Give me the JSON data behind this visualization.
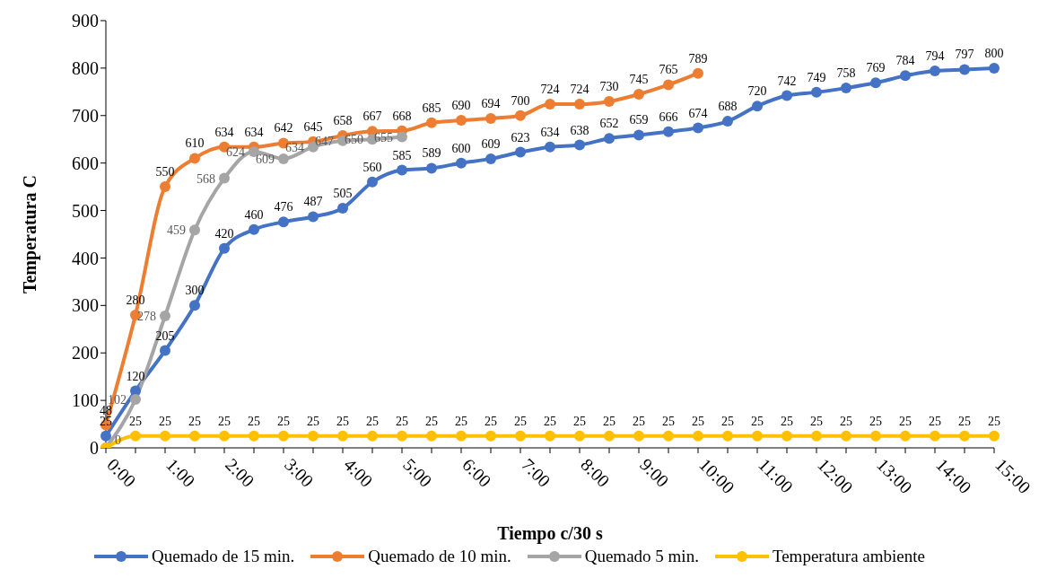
{
  "chart_data": {
    "type": "line",
    "xlabel": "Tiempo c/30 s",
    "ylabel": "Temperatura C",
    "categories": [
      "0:00",
      null,
      "1:00",
      null,
      "2:00",
      null,
      "3:00",
      null,
      "4:00",
      null,
      "5:00",
      null,
      "6:00",
      null,
      "7:00",
      null,
      "8:00",
      null,
      "9:00",
      null,
      "10:00",
      null,
      "11:00",
      null,
      "12:00",
      null,
      "13:00",
      null,
      "14:00",
      null,
      "15:00"
    ],
    "series": [
      {
        "name": "Quemado de 15 min.",
        "color": "#4472c4",
        "values": [
          25,
          120,
          205,
          300,
          420,
          460,
          476,
          487,
          505,
          560,
          585,
          589,
          600,
          609,
          623,
          634,
          638,
          652,
          659,
          666,
          674,
          688,
          720,
          742,
          749,
          758,
          769,
          784,
          794,
          797,
          800
        ],
        "value_labels": [
          "25",
          "120",
          "205",
          "300",
          "420",
          "460",
          "476",
          "487",
          "505",
          "560",
          "585",
          "589",
          "600",
          "609",
          "623",
          "634",
          "638",
          "652",
          "659",
          "666",
          "674",
          "688",
          "720",
          "742",
          "749",
          "758",
          "769",
          "784",
          "794",
          "797",
          "800"
        ]
      },
      {
        "name": "Quemado de 10 min.",
        "color": "#ed7d31",
        "values": [
          48,
          280,
          550,
          610,
          634,
          634,
          642,
          645,
          658,
          667,
          668,
          685,
          690,
          694,
          700,
          724,
          724,
          730,
          745,
          765,
          789,
          null,
          null,
          null,
          null,
          null,
          null,
          null,
          null,
          null,
          null
        ],
        "value_labels": [
          "48",
          "280",
          "550",
          "610",
          "634",
          "634",
          "642",
          "645",
          "658",
          "667",
          "668",
          "685",
          "690",
          "694",
          "700",
          "724",
          "724",
          "730",
          "745",
          "765",
          "789",
          null,
          null,
          null,
          null,
          null,
          null,
          null,
          null,
          null,
          null
        ]
      },
      {
        "name": "Quemado 5 min.",
        "color": "#a5a5a5",
        "values": [
          0,
          102,
          278,
          459,
          568,
          624,
          609,
          634,
          647,
          650,
          655,
          null,
          null,
          null,
          null,
          null,
          null,
          null,
          null,
          null,
          null,
          null,
          null,
          null,
          null,
          null,
          null,
          null,
          null,
          null,
          null
        ],
        "value_labels": [
          "0",
          "102",
          "278",
          "459",
          "568",
          "624",
          "609",
          "634",
          "647",
          "650",
          "655",
          null,
          null,
          null,
          null,
          null,
          null,
          null,
          null,
          null,
          null,
          null,
          null,
          null,
          null,
          null,
          null,
          null,
          null,
          null,
          null
        ]
      },
      {
        "name": "Temperatura ambiente",
        "color": "#ffc000",
        "values": [
          0,
          25,
          25,
          25,
          25,
          25,
          25,
          25,
          25,
          25,
          25,
          25,
          25,
          25,
          25,
          25,
          25,
          25,
          25,
          25,
          25,
          25,
          25,
          25,
          25,
          25,
          25,
          25,
          25,
          25,
          25
        ],
        "value_labels": [
          null,
          "25",
          "25",
          "25",
          "25",
          "25",
          "25",
          "25",
          "25",
          "25",
          "25",
          "25",
          "25",
          "25",
          "25",
          "25",
          "25",
          "25",
          "25",
          "25",
          "25",
          "25",
          "25",
          "25",
          "25",
          "25",
          "25",
          "25",
          "25",
          "25",
          "25"
        ]
      }
    ],
    "ylim": [
      0,
      900
    ],
    "yticks": [
      0,
      100,
      200,
      300,
      400,
      500,
      600,
      700,
      800,
      900
    ],
    "grid": false,
    "legend": "bottom",
    "marker": "circle",
    "line_style": "solid"
  }
}
